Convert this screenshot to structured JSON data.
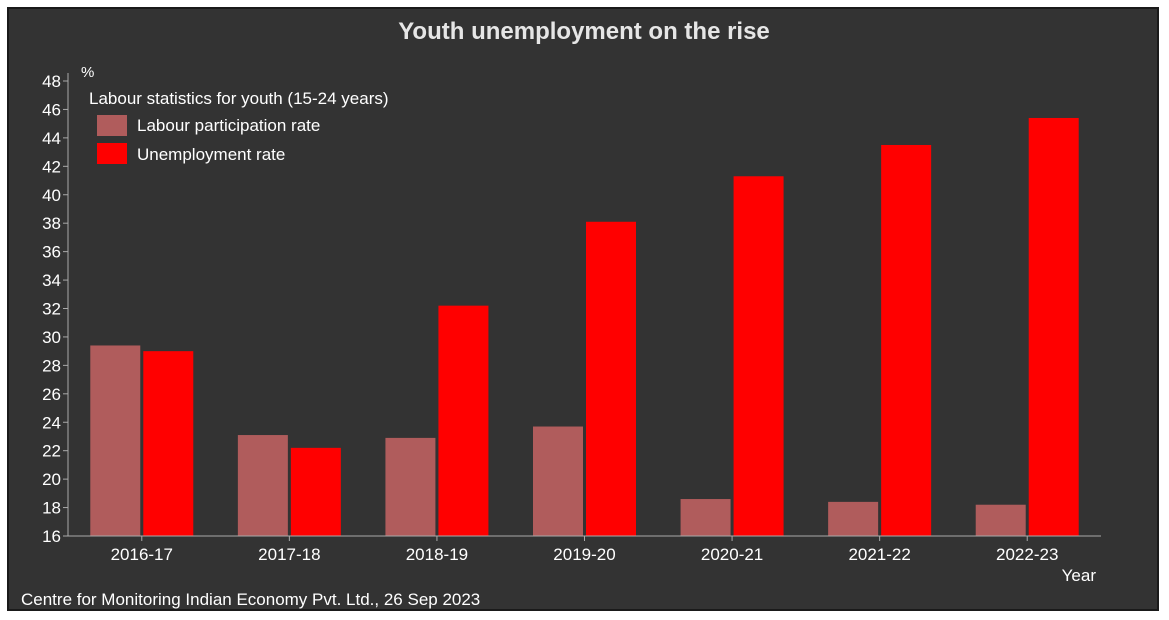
{
  "chart_data": {
    "type": "bar",
    "title": "Youth unemployment on the rise",
    "ylabel": "%",
    "xlabel": "Year",
    "legend_title": "Labour statistics for youth (15-24 years)",
    "legend_position": "top-left",
    "source": "Centre for Monitoring Indian Economy Pvt. Ltd., 26 Sep 2023",
    "ylim": [
      16,
      48
    ],
    "yticks": [
      16,
      18,
      20,
      22,
      24,
      26,
      28,
      30,
      32,
      34,
      36,
      38,
      40,
      42,
      44,
      46,
      48
    ],
    "grid": false,
    "categories": [
      "2016-17",
      "2017-18",
      "2018-19",
      "2019-20",
      "2020-21",
      "2021-22",
      "2022-23"
    ],
    "series": [
      {
        "name": "Labour participation rate",
        "color": "#b05c5c",
        "values": [
          29.4,
          23.1,
          22.9,
          23.7,
          18.6,
          18.4,
          18.2
        ]
      },
      {
        "name": "Unemployment rate",
        "color": "#ff0000",
        "values": [
          29.0,
          22.2,
          32.2,
          38.1,
          41.3,
          43.5,
          45.4
        ]
      }
    ],
    "background": "#333333",
    "axis_color": "#aaaaaa"
  }
}
